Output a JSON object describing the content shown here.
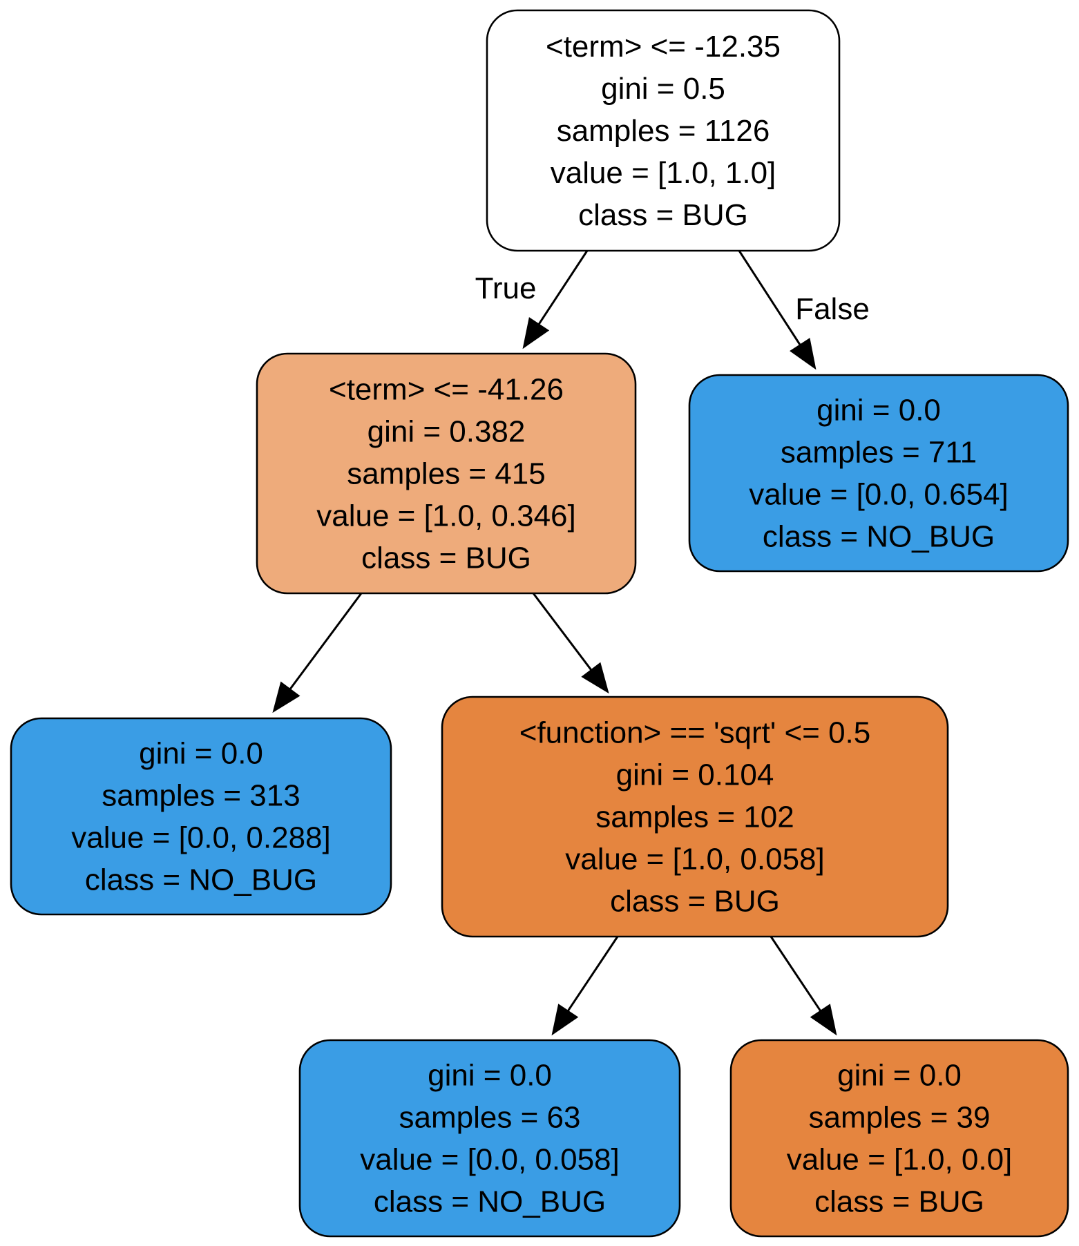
{
  "colors": {
    "white": "#ffffff",
    "light_orange": "#eeab7b",
    "orange": "#e5853f",
    "blue": "#3a9de5"
  },
  "nodes": [
    {
      "id": "root",
      "fill": "white",
      "lines": [
        "<term> <= -12.35",
        "gini = 0.5",
        "samples = 1126",
        "value = [1.0, 1.0]",
        "class = BUG"
      ]
    },
    {
      "id": "left",
      "fill": "light_orange",
      "lines": [
        "<term> <= -41.26",
        "gini = 0.382",
        "samples = 415",
        "value = [1.0, 0.346]",
        "class = BUG"
      ]
    },
    {
      "id": "right",
      "fill": "blue",
      "lines": [
        "gini = 0.0",
        "samples = 711",
        "value = [0.0, 0.654]",
        "class = NO_BUG"
      ]
    },
    {
      "id": "left-left",
      "fill": "blue",
      "lines": [
        "gini = 0.0",
        "samples = 313",
        "value = [0.0, 0.288]",
        "class = NO_BUG"
      ]
    },
    {
      "id": "left-right",
      "fill": "orange",
      "lines": [
        "<function> == 'sqrt' <= 0.5",
        "gini = 0.104",
        "samples = 102",
        "value = [1.0, 0.058]",
        "class = BUG"
      ]
    },
    {
      "id": "left-right-left",
      "fill": "blue",
      "lines": [
        "gini = 0.0",
        "samples = 63",
        "value = [0.0, 0.058]",
        "class = NO_BUG"
      ]
    },
    {
      "id": "left-right-right",
      "fill": "orange",
      "lines": [
        "gini = 0.0",
        "samples = 39",
        "value = [1.0, 0.0]",
        "class = BUG"
      ]
    }
  ],
  "edges": [
    {
      "from": "root",
      "to": "left",
      "label": "True"
    },
    {
      "from": "root",
      "to": "right",
      "label": "False"
    },
    {
      "from": "left",
      "to": "left-left",
      "label": ""
    },
    {
      "from": "left",
      "to": "left-right",
      "label": ""
    },
    {
      "from": "left-right",
      "to": "left-right-left",
      "label": ""
    },
    {
      "from": "left-right",
      "to": "left-right-right",
      "label": ""
    }
  ]
}
